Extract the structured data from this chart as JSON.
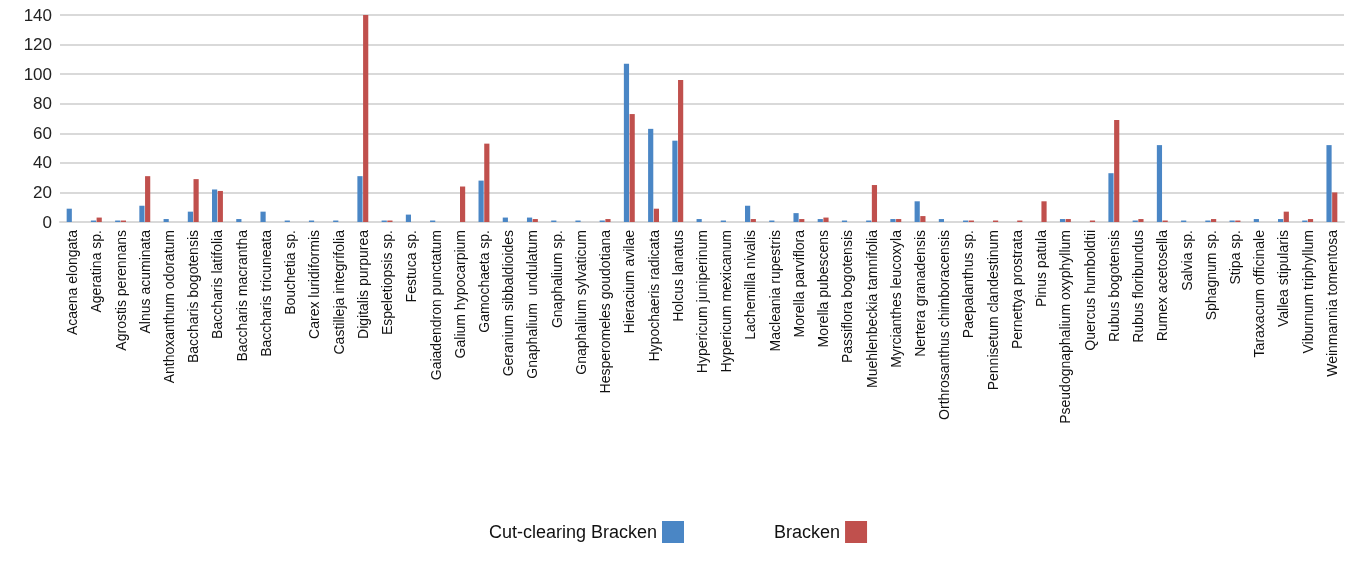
{
  "chart_data": {
    "type": "bar",
    "categories": [
      "Acaena elongata",
      "Ageratina sp.",
      "Agrostis perennans",
      "Alnus acuminata",
      "Anthoxanthum odoratum",
      "Baccharis bogotensis",
      "Baccharis latifolia",
      "Baccharis macrantha",
      "Baccharis tricuneata",
      "Bouchetia sp.",
      "Carex luridiformis",
      "Castilleja integrifolia",
      "Digitalis purpurea",
      "Espeletiopsis sp.",
      "Festuca sp.",
      "Gaiadendron punctatum",
      "Galium hypocarpium",
      "Gamochaeta sp.",
      "Geranium sibbaldioides",
      "Gnaphalium  undulatum",
      "Gnaphalium sp.",
      "Gnaphalium sylvaticum",
      "Hesperomeles goudotiana",
      "Hieracium avilae",
      "Hypochaeris radicata",
      "Holcus lanatus",
      "Hypericum juniperinum",
      "Hypericum mexicanum",
      "Lachemilla nivalis",
      "Macleania rupestris",
      "Morella parviflora",
      "Morella pubescens",
      "Passiflora bogotensis",
      "Muehlenbeckia tamnifolia",
      "Myrcianthes leucoxyla",
      "Nertera granadensis",
      "Orthrosanthus chimboracensis",
      "Paepalanthus sp.",
      "Pennisetum clandestinum",
      "Pernettya prostrata",
      "Pinus patula",
      "Pseudognaphalium oxyphyllum",
      "Quercus humboldtii",
      "Rubus bogotensis",
      "Rubus floribundus",
      "Rumex acetosella",
      "Salvia sp.",
      "Sphagnum sp.",
      "Stipa sp.",
      "Taraxacum officinale",
      "Vallea stipularis",
      "Viburnum triphyllum",
      "Weinmannia tomentosa"
    ],
    "series": [
      {
        "name": "Cut-clearing Bracken",
        "color": "#4a86c5",
        "values": [
          9,
          1,
          1,
          11,
          2,
          7,
          22,
          2,
          7,
          1,
          1,
          1,
          31,
          1,
          5,
          1,
          0,
          28,
          3,
          3,
          1,
          1,
          1,
          107,
          63,
          55,
          2,
          1,
          11,
          1,
          6,
          2,
          1,
          1,
          2,
          14,
          2,
          1,
          0,
          0,
          0,
          2,
          0,
          33,
          1,
          52,
          1,
          1,
          1,
          2,
          2,
          1,
          52
        ]
      },
      {
        "name": "Bracken",
        "color": "#c0504d",
        "values": [
          0,
          3,
          1,
          31,
          0,
          29,
          21,
          0,
          0,
          0,
          0,
          0,
          140,
          1,
          0,
          0,
          24,
          53,
          0,
          2,
          0,
          0,
          2,
          73,
          9,
          96,
          0,
          0,
          2,
          0,
          2,
          3,
          0,
          25,
          2,
          4,
          0,
          1,
          1,
          1,
          14,
          2,
          1,
          69,
          2,
          1,
          0,
          2,
          1,
          0,
          7,
          2,
          20
        ]
      }
    ],
    "ylim": [
      0,
      140
    ],
    "yticks": [
      0,
      20,
      40,
      60,
      80,
      100,
      120,
      140
    ],
    "grid": "y",
    "legend": "bottom"
  }
}
